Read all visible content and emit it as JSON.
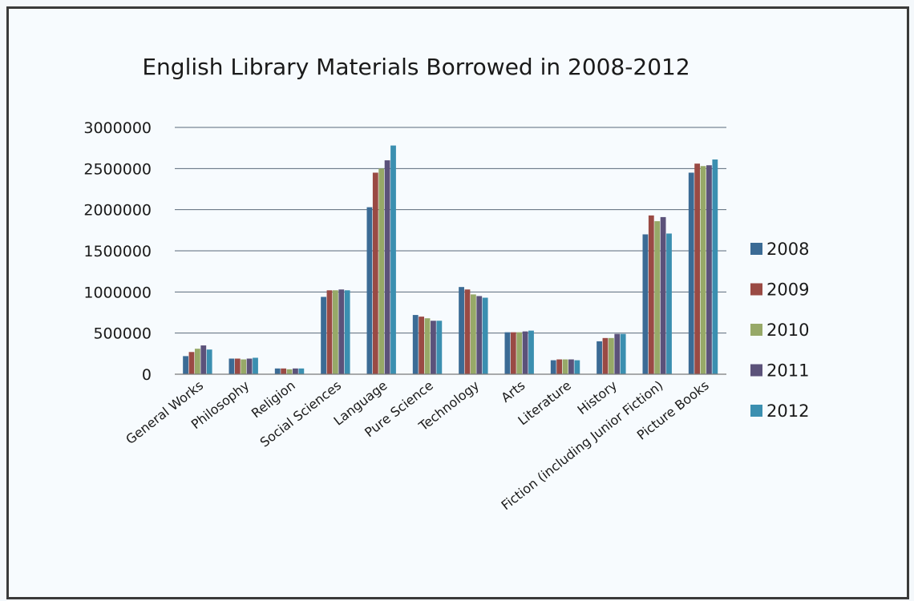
{
  "chart_data": {
    "type": "bar",
    "title": "English Library Materials Borrowed in 2008-2012",
    "xlabel": "",
    "ylabel": "",
    "ylim": [
      0,
      3000000
    ],
    "yticks": [
      "0",
      "500000",
      "1000000",
      "1500000",
      "2000000",
      "2500000",
      "3000000"
    ],
    "grid": true,
    "legend_position": "right",
    "categories": [
      "General Works",
      "Philosophy",
      "Religion",
      "Social Sciences",
      "Language",
      "Pure Science",
      "Technology",
      "Arts",
      "Literature",
      "History",
      "Fiction (including Junior Fiction)",
      "Picture Books"
    ],
    "series": [
      {
        "name": "2008",
        "color": "#3b6b95",
        "values": [
          220000,
          190000,
          70000,
          940000,
          2030000,
          720000,
          1060000,
          510000,
          170000,
          400000,
          1700000,
          2450000
        ]
      },
      {
        "name": "2009",
        "color": "#9a4a44",
        "values": [
          270000,
          190000,
          70000,
          1020000,
          2450000,
          700000,
          1030000,
          510000,
          180000,
          440000,
          1930000,
          2560000
        ]
      },
      {
        "name": "2010",
        "color": "#97a968",
        "values": [
          310000,
          180000,
          60000,
          1020000,
          2500000,
          680000,
          970000,
          510000,
          180000,
          440000,
          1860000,
          2530000
        ]
      },
      {
        "name": "2011",
        "color": "#5b527a",
        "values": [
          350000,
          190000,
          70000,
          1030000,
          2600000,
          650000,
          950000,
          520000,
          180000,
          490000,
          1910000,
          2540000
        ]
      },
      {
        "name": "2012",
        "color": "#3b8fb0",
        "values": [
          300000,
          200000,
          70000,
          1020000,
          2780000,
          650000,
          930000,
          530000,
          170000,
          490000,
          1710000,
          2610000
        ]
      }
    ]
  }
}
